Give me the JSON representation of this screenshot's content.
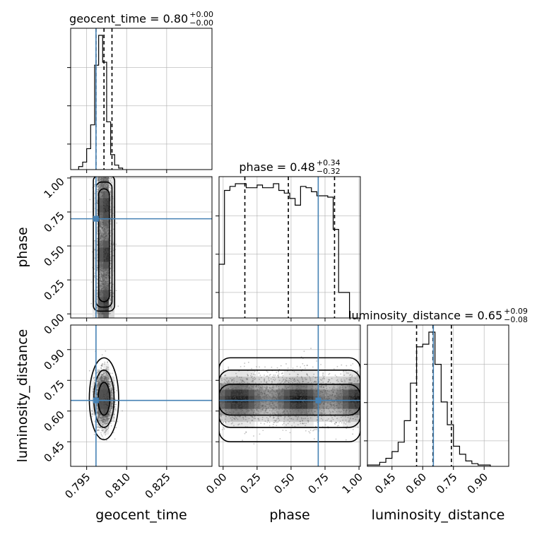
{
  "chart_data": {
    "type": "corner",
    "parameters": [
      "geocent_time",
      "phase",
      "luminosity_distance"
    ],
    "titles": [
      {
        "param": "geocent_time",
        "label": "geocent_time",
        "median": "0.80",
        "plus": "+0.00",
        "minus": "−0.00"
      },
      {
        "param": "phase",
        "label": "phase",
        "median": "0.48",
        "plus": "+0.34",
        "minus": "−0.32"
      },
      {
        "param": "luminosity_distance",
        "label": "luminosity_distance",
        "median": "0.65",
        "plus": "+0.09",
        "minus": "−0.08"
      }
    ],
    "axes": {
      "geocent_time": {
        "range": [
          0.789,
          0.842
        ],
        "ticks": [
          0.795,
          0.81,
          0.825
        ],
        "tick_labels": [
          "0.795",
          "0.810",
          "0.825"
        ]
      },
      "phase": {
        "range": [
          -0.03,
          1.01
        ],
        "ticks": [
          0.0,
          0.25,
          0.5,
          0.75,
          1.0
        ],
        "tick_labels": [
          "0.00",
          "0.25",
          "0.50",
          "0.75",
          "1.00"
        ]
      },
      "luminosity_distance": {
        "range": [
          0.33,
          1.02
        ],
        "ticks": [
          0.45,
          0.6,
          0.75,
          0.9
        ],
        "tick_labels": [
          "0.45",
          "0.60",
          "0.75",
          "0.90"
        ]
      }
    },
    "truths": {
      "geocent_time": 0.7985,
      "phase": 0.7,
      "luminosity_distance": 0.652
    },
    "quantiles": {
      "geocent_time": [
        0.7985,
        0.8015,
        0.8045
      ],
      "phase": [
        0.16,
        0.48,
        0.82
      ],
      "luminosity_distance": [
        0.57,
        0.65,
        0.74
      ]
    },
    "histograms": {
      "geocent_time": {
        "edges_from": 0.792,
        "bin_width": 0.0015,
        "counts": [
          2,
          5,
          14,
          30,
          70,
          90,
          72,
          32,
          10,
          3,
          1
        ]
      },
      "phase": {
        "edges_from": -0.03,
        "bin_width": 0.04,
        "counts": [
          40,
          95,
          98,
          100,
          100,
          97,
          97,
          99,
          97,
          97,
          100,
          95,
          93,
          89,
          84,
          98,
          97,
          94,
          91,
          91,
          90,
          66,
          19,
          19
        ]
      },
      "luminosity_distance": {
        "edges_from": 0.33,
        "bin_width": 0.03,
        "counts": [
          1,
          1,
          3,
          6,
          11,
          18,
          34,
          62,
          89,
          91,
          100,
          76,
          48,
          31,
          15,
          9,
          4,
          2,
          1,
          1
        ]
      }
    },
    "grid": true
  }
}
